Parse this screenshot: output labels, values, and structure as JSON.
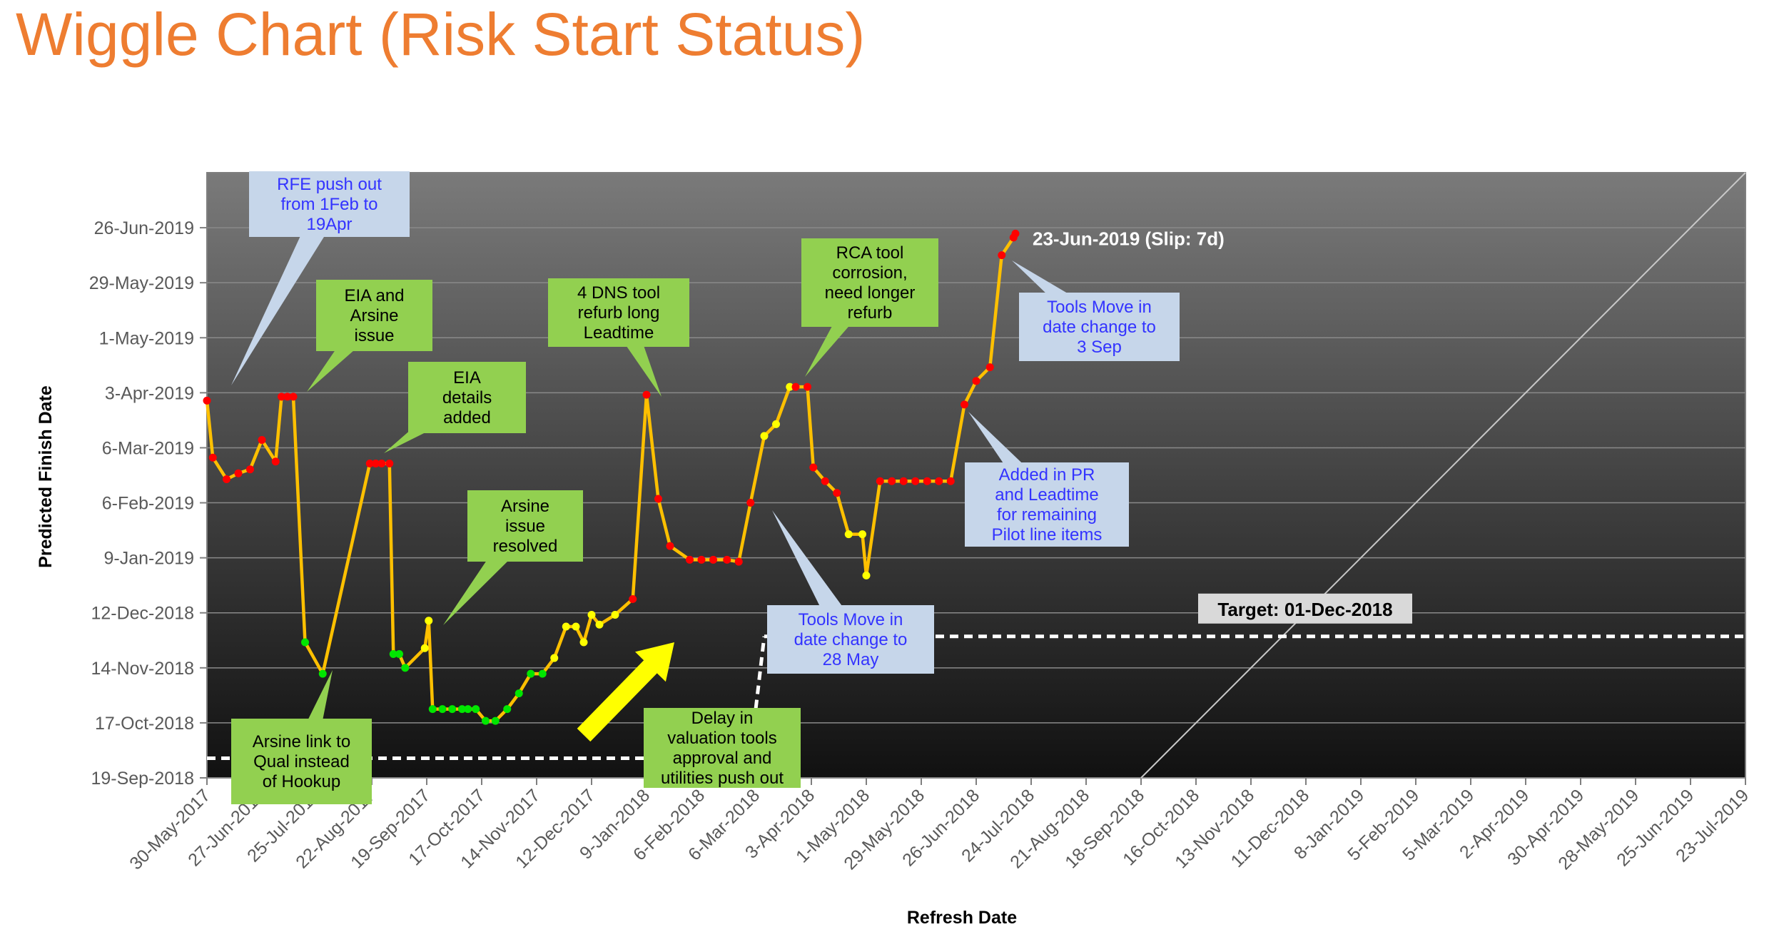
{
  "chart_data": {
    "type": "line",
    "title": "Wiggle Chart (Risk Start Status)",
    "xlabel": "Refresh Date",
    "ylabel": "Predicted Finish Date",
    "x_tick_labels": [
      "30-May-2017",
      "27-Jun-2017",
      "25-Jul-2017",
      "22-Aug-2017",
      "19-Sep-2017",
      "17-Oct-2017",
      "14-Nov-2017",
      "12-Dec-2017",
      "9-Jan-2018",
      "6-Feb-2018",
      "6-Mar-2018",
      "3-Apr-2018",
      "1-May-2018",
      "29-May-2018",
      "26-Jun-2018",
      "24-Jul-2018",
      "21-Aug-2018",
      "18-Sep-2018",
      "16-Oct-2018",
      "13-Nov-2018",
      "11-Dec-2018",
      "8-Jan-2019",
      "5-Feb-2019",
      "5-Mar-2019",
      "2-Apr-2019",
      "30-Apr-2019",
      "28-May-2019",
      "25-Jun-2019",
      "23-Jul-2019"
    ],
    "y_tick_labels": [
      "19-Sep-2018",
      "17-Oct-2018",
      "14-Nov-2018",
      "12-Dec-2018",
      "9-Jan-2019",
      "6-Feb-2019",
      "6-Mar-2019",
      "3-Apr-2019",
      "1-May-2019",
      "29-May-2019",
      "26-Jun-2019"
    ],
    "xlim": [
      "2017-05-30",
      "2019-07-23"
    ],
    "ylim": [
      "2018-09-19",
      "2019-07-24"
    ],
    "grid": true,
    "series": [
      {
        "name": "",
        "color": "#ffc000",
        "points": [
          {
            "x": "2017-05-30",
            "y": "2019-03-30",
            "status": "red"
          },
          {
            "x": "2017-06-02",
            "y": "2019-03-01",
            "status": "red"
          },
          {
            "x": "2017-06-09",
            "y": "2019-02-18",
            "status": "red"
          },
          {
            "x": "2017-06-15",
            "y": "2019-02-21",
            "status": "red"
          },
          {
            "x": "2017-06-21",
            "y": "2019-02-23",
            "status": "red"
          },
          {
            "x": "2017-06-27",
            "y": "2019-03-10",
            "status": "red"
          },
          {
            "x": "2017-07-04",
            "y": "2019-02-27",
            "status": "red"
          },
          {
            "x": "2017-07-07",
            "y": "2019-04-01",
            "status": "red"
          },
          {
            "x": "2017-07-10",
            "y": "2019-04-01",
            "status": "red"
          },
          {
            "x": "2017-07-13",
            "y": "2019-04-01",
            "status": "red"
          },
          {
            "x": "2017-07-19",
            "y": "2018-11-27",
            "status": "green"
          },
          {
            "x": "2017-07-28",
            "y": "2018-11-11",
            "status": "green"
          },
          {
            "x": "2017-08-21",
            "y": "2019-02-26",
            "status": "red"
          },
          {
            "x": "2017-08-24",
            "y": "2019-02-26",
            "status": "red"
          },
          {
            "x": "2017-08-27",
            "y": "2019-02-26",
            "status": "red"
          },
          {
            "x": "2017-08-31",
            "y": "2019-02-26",
            "status": "red"
          },
          {
            "x": "2017-09-02",
            "y": "2018-11-21",
            "status": "green"
          },
          {
            "x": "2017-09-05",
            "y": "2018-11-21",
            "status": "green"
          },
          {
            "x": "2017-09-08",
            "y": "2018-11-14",
            "status": "green"
          },
          {
            "x": "2017-09-18",
            "y": "2018-11-24",
            "status": "yellow"
          },
          {
            "x": "2017-09-20",
            "y": "2018-12-08",
            "status": "yellow"
          },
          {
            "x": "2017-09-22",
            "y": "2018-10-24",
            "status": "green"
          },
          {
            "x": "2017-09-27",
            "y": "2018-10-24",
            "status": "green"
          },
          {
            "x": "2017-10-02",
            "y": "2018-10-24",
            "status": "green"
          },
          {
            "x": "2017-10-07",
            "y": "2018-10-24",
            "status": "green"
          },
          {
            "x": "2017-10-10",
            "y": "2018-10-24",
            "status": "green"
          },
          {
            "x": "2017-10-14",
            "y": "2018-10-24",
            "status": "green"
          },
          {
            "x": "2017-10-19",
            "y": "2018-10-18",
            "status": "green"
          },
          {
            "x": "2017-10-24",
            "y": "2018-10-18",
            "status": "green"
          },
          {
            "x": "2017-10-30",
            "y": "2018-10-24",
            "status": "green"
          },
          {
            "x": "2017-11-05",
            "y": "2018-11-01",
            "status": "green"
          },
          {
            "x": "2017-11-11",
            "y": "2018-11-11",
            "status": "green"
          },
          {
            "x": "2017-11-17",
            "y": "2018-11-11",
            "status": "green"
          },
          {
            "x": "2017-11-23",
            "y": "2018-11-19",
            "status": "yellow"
          },
          {
            "x": "2017-11-29",
            "y": "2018-12-05",
            "status": "yellow"
          },
          {
            "x": "2017-12-04",
            "y": "2018-12-05",
            "status": "yellow"
          },
          {
            "x": "2017-12-08",
            "y": "2018-11-27",
            "status": "yellow"
          },
          {
            "x": "2017-12-12",
            "y": "2018-12-11",
            "status": "yellow"
          },
          {
            "x": "2017-12-16",
            "y": "2018-12-06",
            "status": "yellow"
          },
          {
            "x": "2017-12-24",
            "y": "2018-12-11",
            "status": "yellow"
          },
          {
            "x": "2018-01-02",
            "y": "2018-12-19",
            "status": "red"
          },
          {
            "x": "2018-01-09",
            "y": "2019-04-02",
            "status": "red"
          },
          {
            "x": "2018-01-15",
            "y": "2019-02-08",
            "status": "red"
          },
          {
            "x": "2018-01-21",
            "y": "2019-01-15",
            "status": "red"
          },
          {
            "x": "2018-01-31",
            "y": "2019-01-08",
            "status": "red"
          },
          {
            "x": "2018-02-06",
            "y": "2019-01-08",
            "status": "red"
          },
          {
            "x": "2018-02-12",
            "y": "2019-01-08",
            "status": "red"
          },
          {
            "x": "2018-02-19",
            "y": "2019-01-08",
            "status": "red"
          },
          {
            "x": "2018-02-25",
            "y": "2019-01-07",
            "status": "red"
          },
          {
            "x": "2018-03-03",
            "y": "2019-02-06",
            "status": "red"
          },
          {
            "x": "2018-03-10",
            "y": "2019-03-12",
            "status": "yellow"
          },
          {
            "x": "2018-03-16",
            "y": "2019-03-18",
            "status": "yellow"
          },
          {
            "x": "2018-03-23",
            "y": "2019-04-06",
            "status": "yellow"
          },
          {
            "x": "2018-03-26",
            "y": "2019-04-06",
            "status": "red"
          },
          {
            "x": "2018-04-01",
            "y": "2019-04-06",
            "status": "red"
          },
          {
            "x": "2018-04-04",
            "y": "2019-02-24",
            "status": "red"
          },
          {
            "x": "2018-04-10",
            "y": "2019-02-17",
            "status": "red"
          },
          {
            "x": "2018-04-16",
            "y": "2019-02-11",
            "status": "red"
          },
          {
            "x": "2018-04-22",
            "y": "2019-01-21",
            "status": "yellow"
          },
          {
            "x": "2018-04-29",
            "y": "2019-01-21",
            "status": "yellow"
          },
          {
            "x": "2018-05-01",
            "y": "2018-12-31",
            "status": "yellow"
          },
          {
            "x": "2018-05-08",
            "y": "2019-02-17",
            "status": "red"
          },
          {
            "x": "2018-05-14",
            "y": "2019-02-17",
            "status": "red"
          },
          {
            "x": "2018-05-20",
            "y": "2019-02-17",
            "status": "red"
          },
          {
            "x": "2018-05-26",
            "y": "2019-02-17",
            "status": "red"
          },
          {
            "x": "2018-06-01",
            "y": "2019-02-17",
            "status": "red"
          },
          {
            "x": "2018-06-07",
            "y": "2019-02-17",
            "status": "red"
          },
          {
            "x": "2018-06-13",
            "y": "2019-02-17",
            "status": "red"
          },
          {
            "x": "2018-06-20",
            "y": "2019-03-28",
            "status": "red"
          },
          {
            "x": "2018-06-26",
            "y": "2019-04-09",
            "status": "red"
          },
          {
            "x": "2018-07-03",
            "y": "2019-04-16",
            "status": "red"
          },
          {
            "x": "2018-07-09",
            "y": "2019-06-12",
            "status": "red"
          },
          {
            "x": "2018-07-15",
            "y": "2019-06-21",
            "status": "red"
          },
          {
            "x": "2018-07-16",
            "y": "2019-06-23",
            "status": "red"
          }
        ]
      }
    ],
    "target": {
      "label": "Target: 01-Dec-2018"
    },
    "dashed_reference": {
      "segments": [
        {
          "from": {
            "x": "2017-05-30",
            "y": "2018-09-29"
          },
          "to": {
            "x": "2018-02-12",
            "y": "2018-09-29"
          }
        },
        {
          "from": {
            "x": "2018-03-04",
            "y": "2018-10-10"
          },
          "to": {
            "x": "2018-03-10",
            "y": "2018-11-30"
          }
        },
        {
          "from": {
            "x": "2018-03-10",
            "y": "2018-11-30"
          },
          "to": {
            "x": "2019-07-23",
            "y": "2018-11-30"
          }
        }
      ]
    },
    "diagonal_line": {
      "from": {
        "x": "2018-09-18",
        "y": "2018-09-19"
      },
      "to": {
        "x": "2019-07-23",
        "y": "2019-07-24"
      }
    },
    "end_label": "23-Jun-2019 (Slip: 7d)",
    "annotations": [
      {
        "lines": [
          "RFE push out",
          "from 1Feb to",
          "19Apr"
        ],
        "style": "blue",
        "anchor": {
          "x": "2017-05-30",
          "y": "2019-03-30"
        }
      },
      {
        "lines": [
          "EIA and",
          "Arsine",
          "issue"
        ],
        "style": "green",
        "anchor": {
          "x": "2017-07-13",
          "y": "2019-04-01"
        }
      },
      {
        "lines": [
          "EIA",
          "details",
          "added"
        ],
        "style": "green",
        "anchor": {
          "x": "2017-08-31",
          "y": "2019-02-26"
        }
      },
      {
        "lines": [
          "Arsine",
          "issue",
          "resolved"
        ],
        "style": "green",
        "anchor": {
          "x": "2017-09-20",
          "y": "2018-12-03"
        }
      },
      {
        "lines": [
          "4 DNS tool",
          "refurb long",
          "Leadtime"
        ],
        "style": "green",
        "anchor": {
          "x": "2018-01-09",
          "y": "2019-04-02"
        }
      },
      {
        "lines": [
          "RCA tool",
          "corrosion,",
          "need longer",
          "refurb"
        ],
        "style": "green",
        "anchor": {
          "x": "2018-04-01",
          "y": "2019-04-06"
        }
      },
      {
        "lines": [
          "Tools Move in",
          "date change to",
          "3 Sep"
        ],
        "style": "blue",
        "anchor": {
          "x": "2018-07-16",
          "y": "2019-06-14"
        }
      },
      {
        "lines": [
          "Added in PR",
          "and Leadtime",
          "for remaining",
          "Pilot line items"
        ],
        "style": "blue",
        "anchor": {
          "x": "2018-06-22",
          "y": "2019-03-22"
        }
      },
      {
        "lines": [
          "Tools Move in",
          "date change to",
          "28 May"
        ],
        "style": "blue",
        "anchor": {
          "x": "2018-03-01",
          "y": "2019-01-20"
        }
      },
      {
        "lines": [
          "Arsine link to",
          "Qual instead",
          "of Hookup"
        ],
        "style": "green",
        "anchor": {
          "x": "2017-07-28",
          "y": "2018-11-10"
        }
      },
      {
        "lines": [
          "Delay in",
          "valuation tools",
          "approval and",
          "utilities push out"
        ],
        "style": "green",
        "anchor": null
      }
    ],
    "colors": {
      "line": "#ffc000",
      "red_marker": "#ff0000",
      "green_marker": "#00e600",
      "yellow_marker": "#ffff00",
      "title": "#ee7d31",
      "blue_callout_fill": "#c6d6ea",
      "blue_callout_text": "#3333ff",
      "green_callout_fill": "#92d050",
      "green_callout_text": "#000000",
      "arrow": "#ffff00"
    }
  }
}
